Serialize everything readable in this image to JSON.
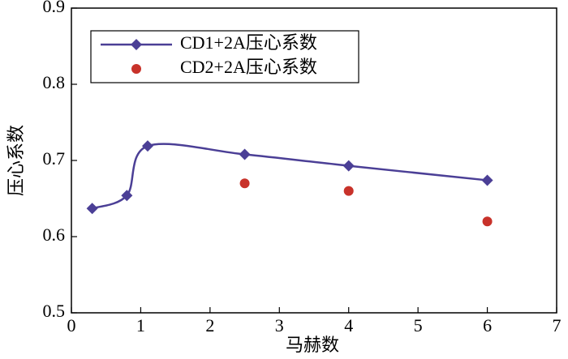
{
  "chart_data": {
    "type": "line",
    "xlabel": "马赫数",
    "ylabel": "压心系数",
    "xlim": [
      0,
      7
    ],
    "xticks": [
      0,
      1,
      2,
      3,
      4,
      5,
      6,
      7
    ],
    "ylim": [
      0.5,
      0.9
    ],
    "yticks": [
      0.5,
      0.6,
      0.7,
      0.8,
      0.9
    ],
    "legend": "upper left",
    "series": [
      {
        "name": "CD1+2A压心系数",
        "color": "#4b3f96",
        "marker": "diamond",
        "line": true,
        "x": [
          0.3,
          0.8,
          1.1,
          2.5,
          4,
          6
        ],
        "values": [
          0.637,
          0.654,
          0.719,
          0.708,
          0.693,
          0.674
        ]
      },
      {
        "name": "CD2+2A压心系数",
        "color": "#c8322a",
        "marker": "circle",
        "line": false,
        "x": [
          2.5,
          4,
          6
        ],
        "values": [
          0.67,
          0.66,
          0.62
        ]
      }
    ]
  }
}
